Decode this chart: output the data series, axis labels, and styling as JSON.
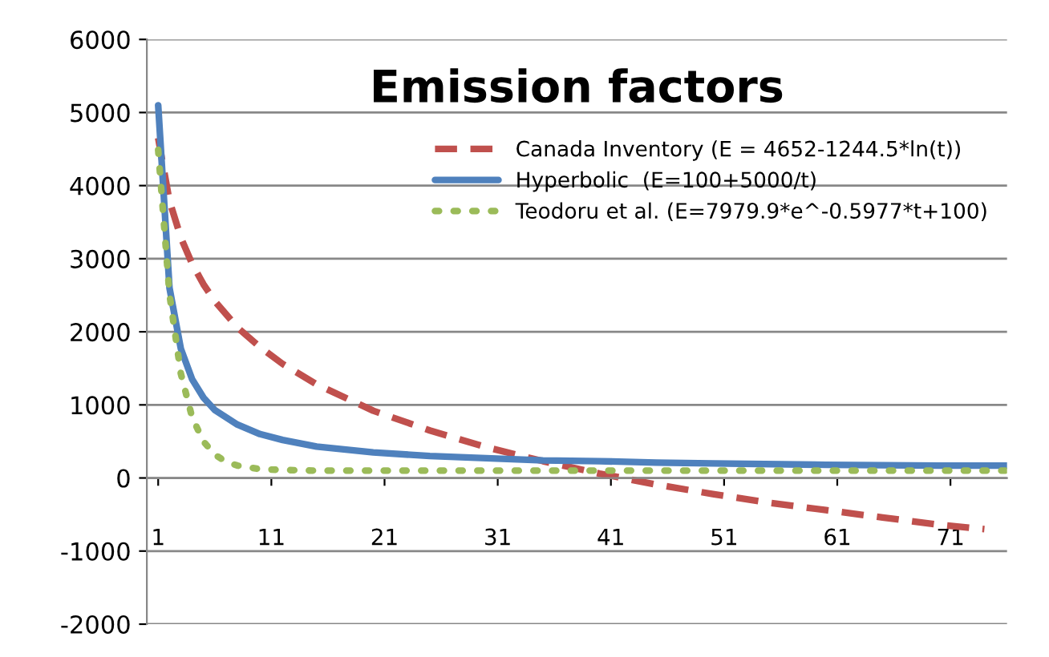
{
  "chart_data": {
    "type": "line",
    "title": "Emission factors",
    "xlim": [
      0,
      76
    ],
    "xticks": [
      1,
      11,
      21,
      31,
      41,
      51,
      61,
      71
    ],
    "ylim": [
      -2000,
      6000
    ],
    "yticks": [
      -2000,
      -1000,
      0,
      1000,
      2000,
      3000,
      4000,
      5000,
      6000
    ],
    "grid": "y",
    "legend": "top right",
    "series": [
      {
        "name": "Canada Inventory (E = 4652-1244.5*ln(t))",
        "color": "#c0504d",
        "line_style": "dashed",
        "x": [
          1,
          2,
          3,
          4,
          5,
          6,
          8,
          10,
          12,
          15,
          20,
          25,
          30,
          35,
          40,
          45,
          50,
          55,
          60,
          65,
          70,
          74
        ],
        "values": [
          4650,
          3790,
          3290,
          2930,
          2650,
          2420,
          2060,
          1790,
          1560,
          1280,
          920,
          650,
          420,
          230,
          60,
          -90,
          -220,
          -340,
          -440,
          -540,
          -640,
          -700
        ]
      },
      {
        "name": "Hyperbolic  (E=100+5000/t)",
        "color": "#4f81bd",
        "line_style": "solid",
        "x": [
          1,
          2,
          3,
          4,
          5,
          6,
          8,
          10,
          12,
          15,
          20,
          25,
          30,
          35,
          40,
          45,
          50,
          60,
          70,
          76
        ],
        "values": [
          5100,
          2600,
          1770,
          1350,
          1100,
          930,
          730,
          600,
          520,
          430,
          350,
          300,
          270,
          240,
          230,
          210,
          200,
          180,
          170,
          170
        ]
      },
      {
        "name": "Teodoru et al. (E=7979.9*e^-0.5977*t+100)",
        "color": "#9bbb59",
        "line_style": "dotted",
        "x": [
          1,
          2,
          3,
          4,
          5,
          6,
          7,
          8,
          10,
          12,
          15,
          20,
          30,
          40,
          50,
          60,
          70,
          76
        ],
        "values": [
          4490,
          2510,
          1430,
          830,
          500,
          320,
          220,
          170,
          120,
          110,
          100,
          100,
          100,
          100,
          100,
          100,
          100,
          100
        ]
      }
    ]
  }
}
